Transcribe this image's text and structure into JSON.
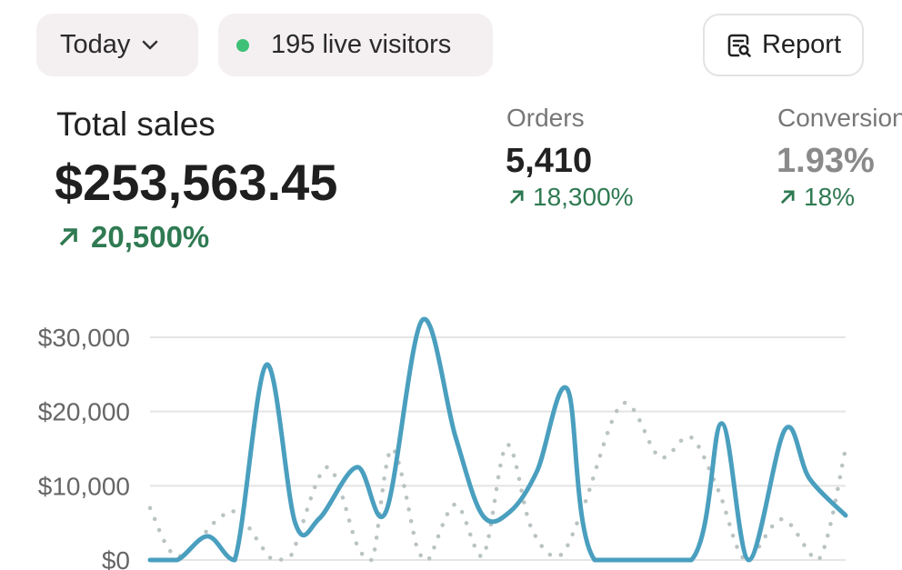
{
  "header": {
    "period_label": "Today",
    "live_visitors": "195 live visitors",
    "report_label": "Report"
  },
  "metrics": {
    "total_sales": {
      "label": "Total sales",
      "value": "$253,563.45",
      "change": "20,500%"
    },
    "orders": {
      "label": "Orders",
      "value": "5,410",
      "change": "18,300%"
    },
    "conversion": {
      "label": "Conversion",
      "value": "1.93%",
      "change": "18%"
    }
  },
  "colors": {
    "accent": "#4a9fbf",
    "comparison": "#b9c3c3",
    "positive": "#2f7a52",
    "live_dot": "#3ec176"
  },
  "icons": {
    "period": "chevron-down-icon",
    "live": "status-dot-icon",
    "report": "report-search-icon",
    "change": "arrow-up-right-icon"
  },
  "chart_data": {
    "type": "line",
    "y_ticks": [
      "$0",
      "$10,000",
      "$20,000",
      "$30,000"
    ],
    "y_tick_values": [
      0,
      10000,
      20000,
      30000
    ],
    "ylim": [
      0,
      30000
    ],
    "xlim": [
      0,
      23
    ],
    "grid": true,
    "series": [
      {
        "style": "solid",
        "points": [
          [
            0,
            0
          ],
          [
            0.9,
            0
          ],
          [
            1.9,
            3200
          ],
          [
            2.8,
            0
          ],
          [
            3.85,
            26300
          ],
          [
            4.8,
            5000
          ],
          [
            5.6,
            5600
          ],
          [
            6.85,
            12500
          ],
          [
            7.8,
            6500
          ],
          [
            9.0,
            32300
          ],
          [
            10.1,
            16600
          ],
          [
            11.0,
            6000
          ],
          [
            11.9,
            6500
          ],
          [
            12.8,
            12000
          ],
          [
            13.8,
            23000
          ],
          [
            14.7,
            0
          ],
          [
            17.9,
            0
          ],
          [
            18.9,
            18400
          ],
          [
            19.8,
            0
          ],
          [
            21.0,
            17600
          ],
          [
            21.8,
            11000
          ],
          [
            23,
            6000
          ]
        ]
      },
      {
        "style": "dotted",
        "points": [
          [
            0,
            7000
          ],
          [
            0.9,
            500
          ],
          [
            2.25,
            5500
          ],
          [
            2.9,
            6200
          ],
          [
            4.05,
            0
          ],
          [
            4.65,
            500
          ],
          [
            5.85,
            12500
          ],
          [
            6.85,
            2000
          ],
          [
            7.35,
            0
          ],
          [
            8.0,
            15000
          ],
          [
            8.85,
            1300
          ],
          [
            9.2,
            0
          ],
          [
            10.1,
            7500
          ],
          [
            11.0,
            500
          ],
          [
            11.8,
            15500
          ],
          [
            12.6,
            4400
          ],
          [
            13.5,
            500
          ],
          [
            14.3,
            6800
          ],
          [
            15.6,
            21000
          ],
          [
            16.7,
            14500
          ],
          [
            17.1,
            14000
          ],
          [
            17.9,
            16500
          ],
          [
            18.8,
            9300
          ],
          [
            19.7,
            0
          ],
          [
            20.9,
            5500
          ],
          [
            22.1,
            0
          ],
          [
            23,
            15000
          ]
        ]
      }
    ]
  }
}
